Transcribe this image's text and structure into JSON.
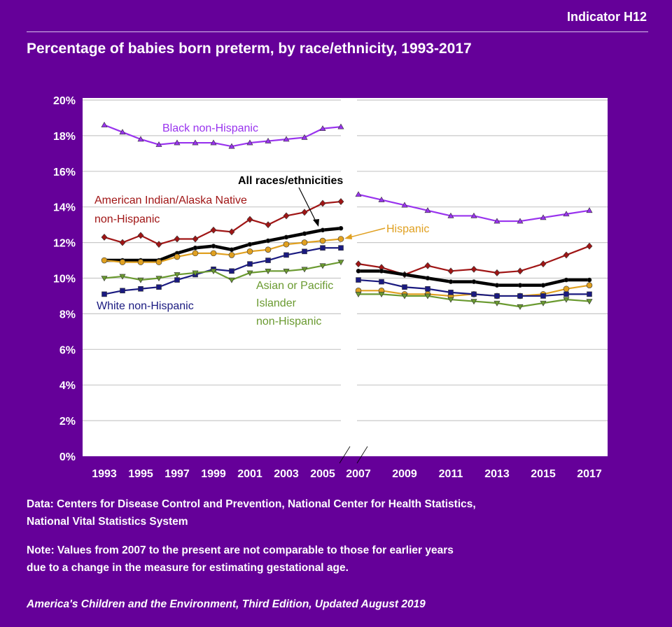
{
  "header": {
    "indicator": "Indicator H12"
  },
  "chart_data": {
    "type": "line",
    "title": "Percentage of babies born preterm, by race/ethnicity, 1993-2017",
    "ylim": [
      0,
      20
    ],
    "y_ticks": [
      "0%",
      "2%",
      "4%",
      "6%",
      "8%",
      "10%",
      "12%",
      "14%",
      "16%",
      "18%",
      "20%"
    ],
    "x_ticks": [
      "1993",
      "1995",
      "1997",
      "1999",
      "2001",
      "2003",
      "2005",
      "2007",
      "2009",
      "2011",
      "2013",
      "2015",
      "2017"
    ],
    "grid": true,
    "x_break": "between 2006 and 2007",
    "years_before": [
      1993,
      1994,
      1995,
      1996,
      1997,
      1998,
      1999,
      2000,
      2001,
      2002,
      2003,
      2004,
      2005,
      2006
    ],
    "years_after": [
      2007,
      2008,
      2009,
      2010,
      2011,
      2012,
      2013,
      2014,
      2015,
      2016,
      2017
    ],
    "series": [
      {
        "name": "Black non-Hispanic",
        "color": "#9933ee",
        "marker": "triangle-up",
        "before": [
          18.6,
          18.2,
          17.8,
          17.5,
          17.6,
          17.6,
          17.6,
          17.4,
          17.6,
          17.7,
          17.8,
          17.9,
          18.4,
          18.5
        ],
        "after": [
          14.7,
          14.4,
          14.1,
          13.8,
          13.5,
          13.5,
          13.2,
          13.2,
          13.4,
          13.6,
          13.8
        ]
      },
      {
        "name": "American Indian/Alaska Native non-Hispanic",
        "color": "#a01515",
        "marker": "diamond",
        "before": [
          12.3,
          12.0,
          12.4,
          11.9,
          12.2,
          12.2,
          12.7,
          12.6,
          13.3,
          13.0,
          13.5,
          13.7,
          14.2,
          14.3
        ],
        "after": [
          10.8,
          10.6,
          10.2,
          10.7,
          10.4,
          10.5,
          10.3,
          10.4,
          10.8,
          11.3,
          11.8
        ]
      },
      {
        "name": "All races/ethnicities",
        "color": "#000000",
        "marker": "circle-small",
        "before": [
          11.0,
          11.0,
          11.0,
          11.0,
          11.4,
          11.7,
          11.8,
          11.6,
          11.9,
          12.1,
          12.3,
          12.5,
          12.7,
          12.8
        ],
        "after": [
          10.4,
          10.4,
          10.2,
          10.0,
          9.8,
          9.8,
          9.6,
          9.6,
          9.6,
          9.9,
          9.9
        ]
      },
      {
        "name": "Hispanic",
        "color": "#e0a020",
        "marker": "circle",
        "before": [
          11.0,
          10.9,
          10.9,
          10.9,
          11.2,
          11.4,
          11.4,
          11.3,
          11.5,
          11.6,
          11.9,
          12.0,
          12.1,
          12.2
        ],
        "after": [
          9.3,
          9.3,
          9.1,
          9.1,
          9.0,
          9.1,
          9.0,
          9.0,
          9.1,
          9.4,
          9.6
        ]
      },
      {
        "name": "White non-Hispanic",
        "color": "#1a1a80",
        "marker": "square",
        "before": [
          9.1,
          9.3,
          9.4,
          9.5,
          9.9,
          10.2,
          10.5,
          10.4,
          10.8,
          11.0,
          11.3,
          11.5,
          11.7,
          11.7
        ],
        "after": [
          9.9,
          9.8,
          9.5,
          9.4,
          9.2,
          9.1,
          9.0,
          9.0,
          9.0,
          9.1,
          9.1
        ]
      },
      {
        "name": "Asian or Pacific Islander non-Hispanic",
        "color": "#6a9a30",
        "marker": "triangle-down",
        "before": [
          10.0,
          10.1,
          9.9,
          10.0,
          10.2,
          10.3,
          10.4,
          9.9,
          10.3,
          10.4,
          10.4,
          10.5,
          10.7,
          10.9
        ],
        "after": [
          9.1,
          9.1,
          9.0,
          9.0,
          8.8,
          8.7,
          8.6,
          8.4,
          8.6,
          8.8,
          8.7
        ]
      }
    ],
    "labels": {
      "black": "Black non-Hispanic",
      "all": "All races/ethnicities",
      "aian_1": "American Indian/Alaska Native",
      "aian_2": "non-Hispanic",
      "hispanic": "Hispanic",
      "white": "White non-Hispanic",
      "api_1": "Asian or Pacific",
      "api_2": "Islander",
      "api_3": "non-Hispanic"
    }
  },
  "footer": {
    "data_1": "Data: Centers for Disease Control and Prevention, National Center for Health Statistics,",
    "data_2": "National Vital Statistics System",
    "note_1": "Note: Values from 2007 to the present are not comparable to those for earlier years",
    "note_2": "due to a change in the measure for estimating gestational age.",
    "source": "America's Children and the Environment, Third Edition, Updated August 2019"
  }
}
